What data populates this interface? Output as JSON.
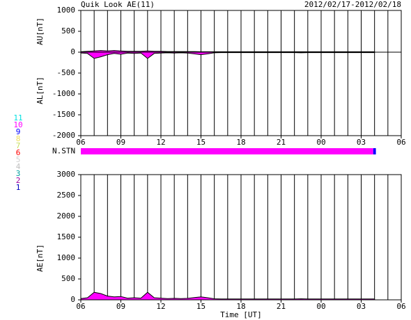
{
  "chart_data": [
    {
      "type": "area",
      "title": "Quik Look AE(11)",
      "date_range": "2012/02/17-2012/02/18",
      "ylabels": [
        "AU[nT]",
        "AL[nT]"
      ],
      "xlim": [
        0,
        24
      ],
      "xticks": [
        {
          "value": 0,
          "label": "06"
        },
        {
          "value": 3,
          "label": "09"
        },
        {
          "value": 6,
          "label": "12"
        },
        {
          "value": 9,
          "label": "15"
        },
        {
          "value": 12,
          "label": "18"
        },
        {
          "value": 15,
          "label": "21"
        },
        {
          "value": 18,
          "label": "00"
        },
        {
          "value": 21,
          "label": "03"
        },
        {
          "value": 24,
          "label": "06"
        }
      ],
      "x_grid": [
        0,
        1,
        2,
        3,
        4,
        5,
        6,
        7,
        8,
        9,
        10,
        11,
        12,
        13,
        14,
        15,
        16,
        17,
        18,
        19,
        20,
        21,
        22,
        23,
        24
      ],
      "ylim": [
        -2000,
        1000
      ],
      "yticks": [
        1000,
        500,
        0,
        -500,
        -1000,
        -1500,
        -2000
      ],
      "x": [
        0,
        0.5,
        1,
        1.5,
        2,
        2.5,
        3,
        3.5,
        4,
        4.5,
        5,
        5.5,
        6,
        6.5,
        7,
        7.5,
        8,
        8.5,
        9,
        9.5,
        10,
        10.5,
        11,
        11.5,
        12,
        12.5,
        13,
        13.5,
        14,
        14.5,
        15,
        15.5,
        16,
        16.5,
        17,
        17.5,
        18,
        18.5,
        19,
        19.5,
        20,
        20.5,
        21,
        21.5,
        22
      ],
      "series": [
        {
          "color": "#ff00ff",
          "values": [
            10,
            20,
            30,
            40,
            30,
            40,
            30,
            20,
            20,
            20,
            30,
            20,
            20,
            15,
            15,
            15,
            15,
            15,
            10,
            10,
            10,
            10,
            10,
            10,
            10,
            10,
            10,
            10,
            10,
            10,
            10,
            10,
            10,
            10,
            10,
            10,
            10,
            10,
            10,
            10,
            10,
            10,
            10,
            10,
            10
          ]
        },
        {
          "color": "#ff00ff",
          "values": [
            -20,
            -30,
            -150,
            -110,
            -60,
            -30,
            -50,
            -20,
            -30,
            -20,
            -150,
            -30,
            -20,
            -15,
            -20,
            -15,
            -20,
            -40,
            -60,
            -40,
            -15,
            -10,
            -10,
            -10,
            -10,
            -10,
            -10,
            -10,
            -10,
            -10,
            -10,
            -10,
            -10,
            -15,
            -10,
            -10,
            -10,
            -10,
            -10,
            -10,
            -10,
            -10,
            -10,
            -10,
            -10
          ]
        }
      ]
    },
    {
      "type": "strip",
      "label": "N.STN",
      "xlim": [
        0,
        24
      ],
      "stations": [
        {
          "label": "11",
          "color": "#00e0e0"
        },
        {
          "label": "10",
          "color": "#ff00ff"
        },
        {
          "label": "9",
          "color": "#0000ff"
        },
        {
          "label": "8",
          "color": "#f0e060"
        },
        {
          "label": "7",
          "color": "#c8e060"
        },
        {
          "label": "6",
          "color": "#ff0000"
        },
        {
          "label": "5",
          "color": "#d0d0d0"
        },
        {
          "label": "4",
          "color": "#c0c0c0"
        },
        {
          "label": "3",
          "color": "#00a0a0"
        },
        {
          "label": "2",
          "color": "#a000a0"
        },
        {
          "label": "1",
          "color": "#0000c0"
        }
      ],
      "segments": [
        {
          "start": 0,
          "end": 21.9,
          "count": 10
        },
        {
          "start": 21.9,
          "end": 22.1,
          "count": 9
        }
      ]
    },
    {
      "type": "area",
      "xlabel": "Time [UT]",
      "ylabels": [
        "AE[nT]"
      ],
      "xlim": [
        0,
        24
      ],
      "xticks": [
        {
          "value": 0,
          "label": "06"
        },
        {
          "value": 3,
          "label": "09"
        },
        {
          "value": 6,
          "label": "12"
        },
        {
          "value": 9,
          "label": "15"
        },
        {
          "value": 12,
          "label": "18"
        },
        {
          "value": 15,
          "label": "21"
        },
        {
          "value": 18,
          "label": "00"
        },
        {
          "value": 21,
          "label": "03"
        },
        {
          "value": 24,
          "label": "06"
        }
      ],
      "x_grid": [
        0,
        1,
        2,
        3,
        4,
        5,
        6,
        7,
        8,
        9,
        10,
        11,
        12,
        13,
        14,
        15,
        16,
        17,
        18,
        19,
        20,
        21,
        22,
        23,
        24
      ],
      "ylim": [
        0,
        3000
      ],
      "yticks": [
        3000,
        2500,
        2000,
        1500,
        1000,
        500,
        0
      ],
      "x": [
        0,
        0.5,
        1,
        1.5,
        2,
        2.5,
        3,
        3.5,
        4,
        4.5,
        5,
        5.5,
        6,
        6.5,
        7,
        7.5,
        8,
        8.5,
        9,
        9.5,
        10,
        10.5,
        11,
        11.5,
        12,
        12.5,
        13,
        13.5,
        14,
        14.5,
        15,
        15.5,
        16,
        16.5,
        17,
        17.5,
        18,
        18.5,
        19,
        19.5,
        20,
        20.5,
        21,
        21.5,
        22
      ],
      "series": [
        {
          "color": "#ff00ff",
          "values": [
            30,
            50,
            180,
            150,
            90,
            70,
            80,
            40,
            50,
            40,
            180,
            50,
            40,
            30,
            35,
            30,
            35,
            55,
            70,
            50,
            25,
            20,
            20,
            20,
            20,
            20,
            20,
            20,
            20,
            20,
            20,
            20,
            20,
            25,
            20,
            20,
            20,
            20,
            20,
            20,
            20,
            20,
            20,
            20,
            20
          ]
        }
      ]
    }
  ]
}
